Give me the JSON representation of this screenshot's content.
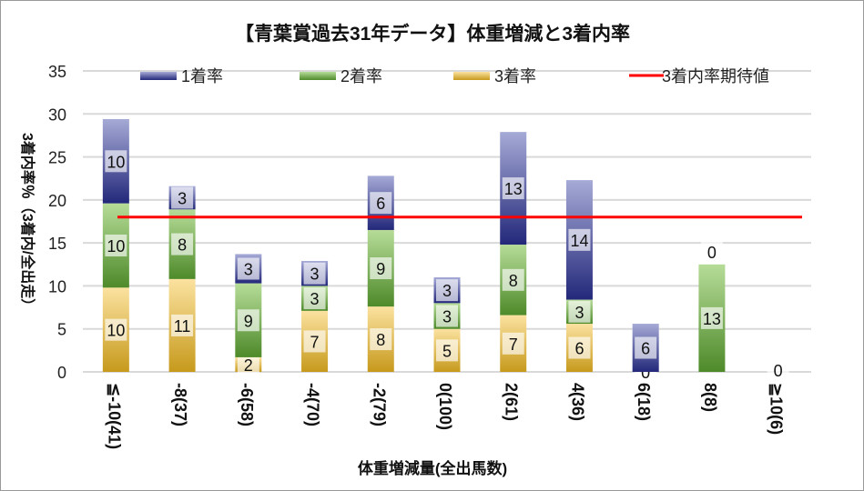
{
  "chart_data": {
    "type": "bar",
    "stacked": true,
    "title": "【青葉賞過去31年データ】体重増減と3着内率",
    "xlabel": "体重増減量(全出馬数)",
    "ylabel": "3着内率％（3着内/全出走）",
    "ylim": [
      0,
      35
    ],
    "yticks": [
      "0",
      "5",
      "10",
      "15",
      "20",
      "25",
      "30",
      "35"
    ],
    "grid": true,
    "legend_position": "top",
    "categories": [
      "≦-10(41)",
      "-8(37)",
      "-6(58)",
      "-4(70)",
      "-2(79)",
      "0(100)",
      "2(61)",
      "4(36)",
      "6(18)",
      "8(8)",
      "≧10(6)"
    ],
    "series": [
      {
        "name": "3着率",
        "color": "#d4a62a",
        "values": [
          9.8,
          10.8,
          1.7,
          7.1,
          7.6,
          5,
          6.6,
          5.6,
          0,
          0,
          0
        ],
        "labels": [
          "10",
          "11",
          "2",
          "7",
          "8",
          "5",
          "7",
          "6",
          "0",
          "0",
          "0"
        ]
      },
      {
        "name": "2着率",
        "color": "#6a9a3a",
        "values": [
          9.8,
          8.1,
          8.6,
          2.9,
          8.9,
          3,
          8.2,
          2.8,
          0,
          12.5,
          0
        ],
        "labels": [
          "10",
          "8",
          "9",
          "3",
          "9",
          "3",
          "8",
          "3",
          "0",
          "13",
          "0"
        ]
      },
      {
        "name": "1着率",
        "color": "#3a3f8a",
        "values": [
          9.8,
          2.7,
          3.4,
          2.9,
          6.3,
          3,
          13.1,
          13.9,
          5.6,
          0,
          0
        ],
        "labels": [
          "10",
          "3",
          "3",
          "3",
          "6",
          "3",
          "13",
          "14",
          "6",
          "0",
          "0"
        ]
      }
    ],
    "reference_line": {
      "name": "3着内率期待値",
      "value": 18,
      "color": "#ff0000"
    }
  }
}
